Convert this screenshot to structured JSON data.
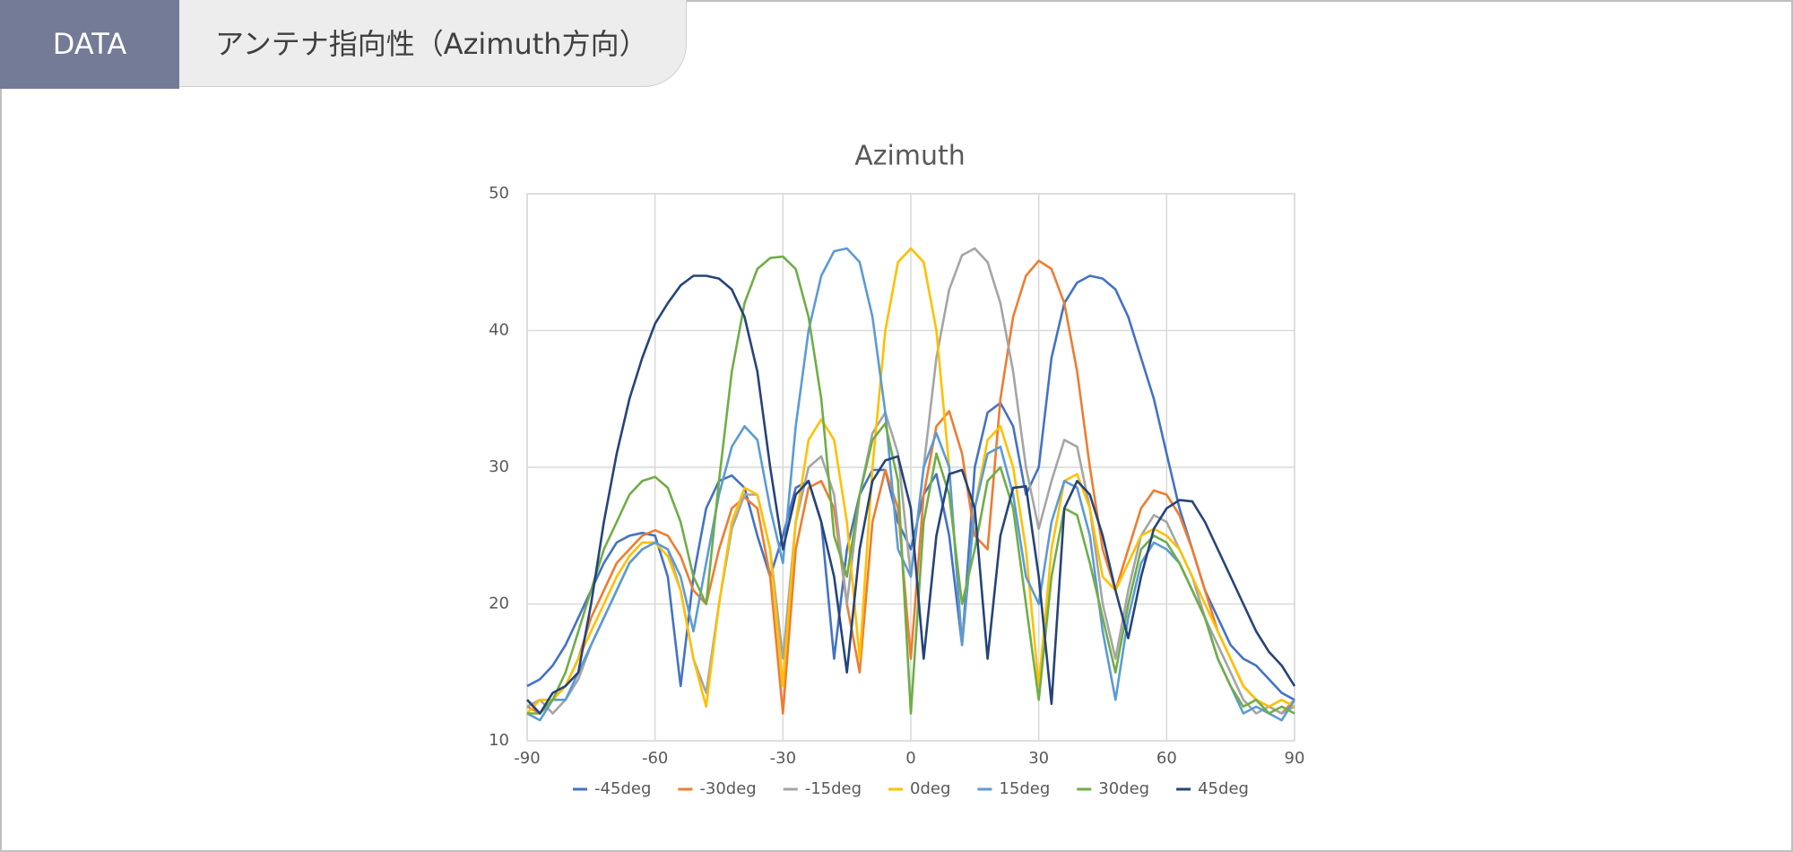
{
  "header": {
    "label": "DATA",
    "title": "アンテナ指向性（Azimuth方向）"
  },
  "chart_data": {
    "type": "line",
    "title": "Azimuth",
    "x": [
      -90,
      -87,
      -84,
      -81,
      -78,
      -75,
      -72,
      -69,
      -66,
      -63,
      -60,
      -57,
      -54,
      -51,
      -48,
      -45,
      -42,
      -39,
      -36,
      -33,
      -30,
      -27,
      -24,
      -21,
      -18,
      -15,
      -12,
      -9,
      -6,
      -3,
      0,
      3,
      6,
      9,
      12,
      15,
      18,
      21,
      24,
      27,
      30,
      33,
      36,
      39,
      42,
      45,
      48,
      51,
      54,
      57,
      60,
      63,
      66,
      69,
      72,
      75,
      78,
      81,
      84,
      87,
      90
    ],
    "series": [
      {
        "name": "-45deg",
        "color": "#4472c4",
        "values": [
          14,
          14.5,
          15.5,
          17,
          19,
          21,
          23,
          24.5,
          25,
          25.2,
          25,
          22,
          14,
          22,
          27,
          29,
          29.4,
          28.5,
          25,
          22,
          25,
          28.5,
          29,
          26,
          16,
          24,
          28,
          29.8,
          29.8,
          26,
          24,
          28,
          29.5,
          25,
          17,
          30,
          34,
          34.7,
          33,
          28,
          30,
          38,
          42,
          43.5,
          44,
          43.8,
          43,
          41,
          38,
          35,
          31,
          27,
          24,
          21,
          19,
          17,
          16,
          15.5,
          14.5,
          13.5,
          13
        ]
      },
      {
        "name": "-30deg",
        "color": "#ed7d31",
        "values": [
          12.5,
          12,
          13,
          14,
          16,
          19,
          21,
          23,
          24,
          25,
          25.4,
          25,
          23.5,
          21,
          20,
          24,
          27,
          27.8,
          27,
          22,
          12,
          24,
          28.5,
          29,
          27,
          20,
          15,
          26,
          29.8,
          27,
          16,
          28,
          33,
          34.1,
          31,
          25,
          24,
          35,
          41,
          44,
          45.1,
          44.5,
          42,
          37,
          30,
          24,
          21,
          24,
          27,
          28.3,
          28,
          26.5,
          24,
          21,
          18,
          16,
          14,
          13,
          12.5,
          12,
          13
        ]
      },
      {
        "name": "-15deg",
        "color": "#a5a5a5",
        "values": [
          12.5,
          13,
          12,
          13,
          14.5,
          17,
          19,
          21,
          23,
          24,
          24.5,
          24,
          21,
          16,
          13.5,
          20,
          25.5,
          28,
          28,
          24,
          16,
          26,
          30,
          30.8,
          28,
          20,
          28,
          32.5,
          34,
          31,
          22,
          30,
          38,
          43,
          45.5,
          46,
          45,
          42,
          37,
          30,
          25.5,
          29,
          32,
          31.5,
          27,
          20,
          16,
          21,
          25,
          26.5,
          26,
          24,
          22,
          19,
          17,
          15,
          13,
          12,
          12.5,
          12,
          12.5
        ]
      },
      {
        "name": "0deg",
        "color": "#ffc000",
        "values": [
          12,
          13,
          13,
          14,
          16,
          18,
          20,
          22,
          23.5,
          24.5,
          24.5,
          23.5,
          21,
          16,
          12.5,
          20,
          26,
          28.5,
          28,
          24,
          14,
          26,
          32,
          33.5,
          32,
          26,
          16,
          30,
          40,
          45,
          46,
          45,
          40,
          30,
          17,
          27,
          32,
          33,
          30,
          24,
          14,
          24,
          29,
          29.5,
          27,
          22,
          21,
          23,
          25,
          25.5,
          25,
          24,
          22,
          20,
          18,
          16,
          14,
          13,
          12.5,
          13,
          12.5
        ]
      },
      {
        "name": "15deg",
        "color": "#5b9bd5",
        "values": [
          12,
          11.5,
          13,
          13,
          15,
          17,
          19,
          21,
          23,
          24,
          24.5,
          24,
          22,
          18,
          23,
          28,
          31.5,
          33,
          32,
          27,
          23,
          33,
          40,
          44,
          45.8,
          46,
          45,
          41,
          34,
          24,
          22,
          30,
          32.5,
          30,
          17,
          27,
          31,
          31.5,
          28,
          22,
          20,
          26,
          29,
          28.5,
          25,
          18,
          13,
          19,
          23,
          24.5,
          24,
          23,
          21,
          19,
          16,
          14,
          12,
          12.5,
          12,
          11.5,
          13
        ]
      },
      {
        "name": "30deg",
        "color": "#70ad47",
        "values": [
          12,
          12,
          13,
          15,
          18,
          21,
          24,
          26,
          28,
          29,
          29.3,
          28.5,
          26,
          22,
          20,
          29,
          37,
          42,
          44.5,
          45.3,
          45.4,
          44.5,
          41,
          35,
          25,
          22,
          28,
          32,
          33.2,
          29,
          12,
          26,
          31,
          28,
          20,
          24,
          29,
          30,
          27,
          20,
          13,
          22,
          27,
          26.5,
          23,
          19,
          15,
          20,
          24,
          25,
          24.5,
          23,
          21,
          19,
          16,
          14,
          12.5,
          13,
          12,
          12.5,
          12
        ]
      },
      {
        "name": "45deg",
        "color": "#264478",
        "values": [
          13,
          12,
          13.5,
          14,
          15,
          20,
          26,
          31,
          35,
          38,
          40.5,
          42,
          43.3,
          44,
          44,
          43.8,
          43,
          41,
          37,
          30,
          24,
          28,
          29,
          26,
          22,
          15,
          24,
          29,
          30.5,
          30.8,
          27,
          16,
          25,
          29.5,
          29.8,
          27,
          16,
          25,
          28.5,
          28.6,
          22,
          12.7,
          27,
          29,
          28,
          25,
          21,
          17.5,
          22,
          25.5,
          27,
          27.6,
          27.5,
          26,
          24,
          22,
          20,
          18,
          16.5,
          15.5,
          14
        ]
      }
    ],
    "xlim": [
      -90,
      90
    ],
    "xticks": [
      -90,
      -60,
      -30,
      0,
      30,
      60,
      90
    ],
    "ylim": [
      10,
      50
    ],
    "yticks": [
      10,
      20,
      30,
      40,
      50
    ],
    "grid": true,
    "legend": "bottom"
  }
}
